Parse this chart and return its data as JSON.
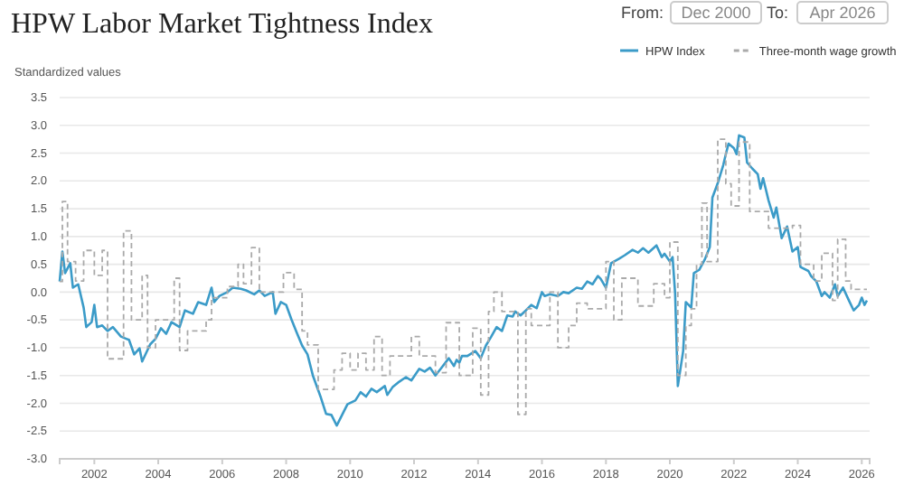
{
  "chart_data": {
    "type": "line",
    "title": "HPW Labor Market Tightness Index",
    "ylabel": "Standardized values",
    "annotations": [
      "From:",
      "Dec 2000",
      "To:",
      "Apr 2026"
    ],
    "xlim": [
      "2000-12",
      "2026-04"
    ],
    "xticks": [
      "2002",
      "2004",
      "2006",
      "2008",
      "2010",
      "2012",
      "2014",
      "2016",
      "2018",
      "2020",
      "2022",
      "2024",
      "2026"
    ],
    "ylim": [
      -3,
      3.5
    ],
    "yticks": [
      {
        "value": -3,
        "label": "-3.0"
      },
      {
        "value": -2.5,
        "label": "-2.5"
      },
      {
        "value": -2,
        "label": "-2.0"
      },
      {
        "value": -1.5,
        "label": "-1.5"
      },
      {
        "value": -1,
        "label": "-1.0"
      },
      {
        "value": -0.5,
        "label": "-0.5"
      },
      {
        "value": 0,
        "label": "0.0"
      },
      {
        "value": 0.5,
        "label": "0.5"
      },
      {
        "value": 1,
        "label": "1.0"
      },
      {
        "value": 1.5,
        "label": "1.5"
      },
      {
        "value": 2,
        "label": "2.0"
      },
      {
        "value": 2.5,
        "label": "2.5"
      },
      {
        "value": 3,
        "label": "3.0"
      },
      {
        "value": 3.5,
        "label": "3.5"
      }
    ],
    "grid": "y",
    "legend": "top right",
    "marker": "none",
    "series": [
      {
        "name": "HPW Index",
        "type": "line",
        "line_style": "solid",
        "color": "#3b9bc8",
        "x": [
          "2000-12",
          "2001-01",
          "2001-02",
          "2001-04",
          "2001-05",
          "2001-07",
          "2001-09",
          "2001-10",
          "2001-12",
          "2002-01",
          "2002-02",
          "2002-04",
          "2002-06",
          "2002-08",
          "2002-11",
          "2003-01",
          "2003-02",
          "2003-04",
          "2003-06",
          "2003-07",
          "2003-10",
          "2003-12",
          "2004-02",
          "2004-04",
          "2004-06",
          "2004-09",
          "2004-11",
          "2005-02",
          "2005-04",
          "2005-07",
          "2005-09",
          "2005-10",
          "2005-12",
          "2006-03",
          "2006-05",
          "2006-08",
          "2006-10",
          "2007-01",
          "2007-03",
          "2007-05",
          "2007-08",
          "2007-09",
          "2007-11",
          "2008-01",
          "2008-03",
          "2008-05",
          "2008-07",
          "2008-09",
          "2008-11",
          "2009-02",
          "2009-04",
          "2009-06",
          "2009-08",
          "2009-10",
          "2009-12",
          "2010-03",
          "2010-05",
          "2010-07",
          "2010-09",
          "2010-11",
          "2011-02",
          "2011-03",
          "2011-05",
          "2011-07",
          "2011-10",
          "2011-12",
          "2012-03",
          "2012-05",
          "2012-07",
          "2012-09",
          "2012-11",
          "2013-02",
          "2013-04",
          "2013-05",
          "2013-06",
          "2013-07",
          "2013-09",
          "2013-12",
          "2014-02",
          "2014-04",
          "2014-06",
          "2014-08",
          "2014-10",
          "2014-12",
          "2015-02",
          "2015-03",
          "2015-05",
          "2015-07",
          "2015-09",
          "2015-11",
          "2016-01",
          "2016-02",
          "2016-04",
          "2016-07",
          "2016-09",
          "2016-11",
          "2017-02",
          "2017-04",
          "2017-06",
          "2017-08",
          "2017-10",
          "2017-11",
          "2018-01",
          "2018-03",
          "2018-06",
          "2018-08",
          "2018-11",
          "2019-01",
          "2019-03",
          "2019-05",
          "2019-08",
          "2019-10",
          "2019-11",
          "2020-01",
          "2020-02",
          "2020-03",
          "2020-04",
          "2020-06",
          "2020-07",
          "2020-09",
          "2020-10",
          "2020-12",
          "2021-02",
          "2021-04",
          "2021-05",
          "2021-07",
          "2021-09",
          "2021-10",
          "2021-11",
          "2022-01",
          "2022-02",
          "2022-03",
          "2022-05",
          "2022-06",
          "2022-08",
          "2022-10",
          "2022-11",
          "2022-12",
          "2023-02",
          "2023-04",
          "2023-05",
          "2023-07",
          "2023-09",
          "2023-11",
          "2024-01",
          "2024-02",
          "2024-05",
          "2024-06",
          "2024-08",
          "2024-10",
          "2024-11",
          "2025-01",
          "2025-03",
          "2025-04",
          "2025-06",
          "2025-08",
          "2025-10",
          "2025-12",
          "2026-01",
          "2026-02",
          "2026-03"
        ],
        "values": [
          0.19,
          0.73,
          0.34,
          0.52,
          0.08,
          0.14,
          -0.28,
          -0.63,
          -0.54,
          -0.23,
          -0.63,
          -0.6,
          -0.7,
          -0.63,
          -0.8,
          -0.84,
          -0.86,
          -1.12,
          -1.01,
          -1.25,
          -0.94,
          -0.84,
          -0.65,
          -0.75,
          -0.54,
          -0.63,
          -0.33,
          -0.39,
          -0.18,
          -0.23,
          0.08,
          -0.18,
          -0.07,
          0,
          0.08,
          0.06,
          0.03,
          -0.04,
          0.03,
          -0.07,
          0,
          -0.39,
          -0.18,
          -0.23,
          -0.49,
          -0.73,
          -0.96,
          -1.12,
          -1.5,
          -1.9,
          -2.19,
          -2.21,
          -2.4,
          -2.21,
          -2.02,
          -1.95,
          -1.8,
          -1.88,
          -1.74,
          -1.8,
          -1.69,
          -1.85,
          -1.71,
          -1.63,
          -1.53,
          -1.59,
          -1.38,
          -1.43,
          -1.36,
          -1.5,
          -1.38,
          -1.19,
          -1.33,
          -1.22,
          -1.27,
          -1.15,
          -1.15,
          -1.06,
          -1.19,
          -0.96,
          -0.8,
          -0.63,
          -0.7,
          -0.42,
          -0.44,
          -0.35,
          -0.42,
          -0.33,
          -0.23,
          -0.29,
          0,
          -0.07,
          -0.04,
          -0.07,
          0,
          -0.02,
          0.08,
          0.06,
          0.19,
          0.14,
          0.29,
          0.24,
          0.08,
          0.52,
          0.6,
          0.66,
          0.76,
          0.71,
          0.79,
          0.71,
          0.84,
          0.63,
          0.69,
          0.55,
          0.63,
          -0.02,
          -1.69,
          -1.06,
          -0.18,
          -0.28,
          0.34,
          0.4,
          0.58,
          0.81,
          1.7,
          1.96,
          2.28,
          2.48,
          2.67,
          2.59,
          2.48,
          2.82,
          2.78,
          2.33,
          2.22,
          2.12,
          1.86,
          2.05,
          1.65,
          1.34,
          1.52,
          0.97,
          1.18,
          0.73,
          0.81,
          0.45,
          0.38,
          0.29,
          0.19,
          -0.07,
          0,
          -0.1,
          0.14,
          -0.07,
          0.08,
          -0.13,
          -0.33,
          -0.23,
          -0.1,
          -0.23,
          -0.15
        ]
      },
      {
        "name": "Three-month wage growth",
        "type": "step",
        "line_style": "dashed",
        "color": "#aaaaaa",
        "x": [
          "2000-12",
          "2001-01",
          "2001-03",
          "2001-06",
          "2001-09",
          "2002-01",
          "2002-04",
          "2002-06",
          "2002-12",
          "2003-03",
          "2003-07",
          "2003-09",
          "2003-12",
          "2004-07",
          "2004-09",
          "2004-12",
          "2005-07",
          "2005-09",
          "2006-03",
          "2006-07",
          "2006-09",
          "2006-12",
          "2007-03",
          "2007-12",
          "2008-04",
          "2008-07",
          "2008-09",
          "2009-01",
          "2009-07",
          "2009-10",
          "2010-01",
          "2010-04",
          "2010-07",
          "2010-10",
          "2011-01",
          "2011-04",
          "2011-12",
          "2012-03",
          "2012-09",
          "2013-01",
          "2013-06",
          "2013-11",
          "2014-02",
          "2014-05",
          "2014-07",
          "2014-10",
          "2015-04",
          "2015-07",
          "2015-09",
          "2016-04",
          "2016-07",
          "2016-11",
          "2017-02",
          "2017-06",
          "2018-01",
          "2018-04",
          "2018-07",
          "2019-01",
          "2019-07",
          "2019-11",
          "2020-01",
          "2020-04",
          "2020-07",
          "2020-09",
          "2020-11",
          "2021-01",
          "2021-03",
          "2021-07",
          "2021-10",
          "2021-12",
          "2022-03",
          "2022-07",
          "2023-02",
          "2023-11",
          "2024-02",
          "2024-07",
          "2024-10",
          "2025-02",
          "2025-04",
          "2025-07",
          "2025-09",
          "2026-03"
        ],
        "values": [
          0.19,
          1.63,
          0.55,
          0.2,
          0.75,
          0.3,
          0.75,
          -1.2,
          1.1,
          -0.5,
          0.3,
          -1.0,
          -0.5,
          0.25,
          -1.05,
          -0.7,
          -0.5,
          -0.1,
          0.1,
          0.5,
          0.15,
          0.8,
          0,
          0.35,
          0.05,
          -0.7,
          -0.95,
          -1.75,
          -1.4,
          -1.1,
          -1.4,
          -1.1,
          -1.4,
          -0.8,
          -1.5,
          -1.15,
          -0.8,
          -1.15,
          -1.45,
          -0.55,
          -1.5,
          -0.65,
          -1.85,
          -0.35,
          0,
          -0.35,
          -2.2,
          -0.3,
          -0.6,
          0,
          -1.0,
          -0.6,
          -0.2,
          -0.3,
          0.55,
          -0.5,
          0.25,
          -0.25,
          0.15,
          -0.1,
          0.9,
          -1.5,
          -0.6,
          -0.3,
          0.5,
          1.6,
          0.55,
          2.75,
          1.95,
          1.55,
          2.7,
          1.45,
          1.15,
          1.2,
          0.5,
          0.2,
          0.7,
          -0.15,
          0.95,
          0.2,
          0.05,
          0.05
        ]
      }
    ]
  }
}
